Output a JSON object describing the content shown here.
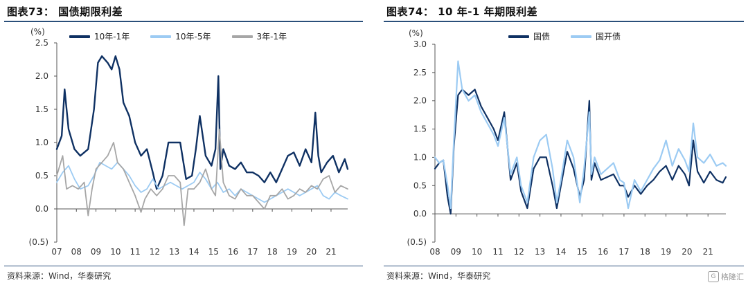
{
  "left": {
    "title": "图表73：  国债期限利差",
    "source": "资料来源：Wind，华泰研究",
    "chart_data": {
      "type": "line",
      "unit_label": "(%)",
      "ylim": [
        -0.5,
        2.5
      ],
      "yticks": [
        -0.5,
        0.0,
        0.5,
        1.0,
        1.5,
        2.0,
        2.5
      ],
      "ytick_labels": [
        "(0.5)",
        "0.0",
        "0.5",
        "1.0",
        "1.5",
        "2.0",
        "2.5"
      ],
      "xlim": [
        2007.0,
        2021.85
      ],
      "xticks": [
        2007,
        2008,
        2009,
        2010,
        2011,
        2012,
        2013,
        2014,
        2015,
        2016,
        2017,
        2018,
        2019,
        2020,
        2021
      ],
      "xtick_labels": [
        "07",
        "08",
        "09",
        "10",
        "11",
        "12",
        "13",
        "14",
        "15",
        "16",
        "17",
        "18",
        "19",
        "20",
        "21"
      ],
      "legend_position": "top",
      "series": [
        {
          "name": "10年-1年",
          "color": "#0f3163",
          "width": 2.4,
          "x": [
            2007.0,
            2007.25,
            2007.4,
            2007.6,
            2007.9,
            2008.2,
            2008.6,
            2008.9,
            2009.1,
            2009.3,
            2009.6,
            2009.8,
            2010.0,
            2010.2,
            2010.4,
            2010.7,
            2011.0,
            2011.3,
            2011.6,
            2011.9,
            2012.1,
            2012.4,
            2012.7,
            2013.0,
            2013.3,
            2013.6,
            2013.9,
            2014.1,
            2014.3,
            2014.6,
            2014.9,
            2015.1,
            2015.25,
            2015.35,
            2015.5,
            2015.8,
            2016.1,
            2016.4,
            2016.7,
            2017.0,
            2017.3,
            2017.6,
            2017.9,
            2018.2,
            2018.5,
            2018.8,
            2019.1,
            2019.4,
            2019.7,
            2020.0,
            2020.2,
            2020.35,
            2020.5,
            2020.8,
            2021.1,
            2021.4,
            2021.7,
            2021.85
          ],
          "y": [
            0.9,
            1.1,
            1.8,
            1.2,
            0.9,
            0.8,
            0.9,
            1.5,
            2.2,
            2.3,
            2.2,
            2.1,
            2.3,
            2.1,
            1.6,
            1.4,
            1.0,
            0.8,
            0.9,
            0.55,
            0.3,
            0.5,
            1.0,
            1.0,
            1.0,
            0.45,
            0.5,
            0.9,
            1.4,
            0.8,
            0.65,
            0.9,
            2.0,
            0.6,
            0.9,
            0.65,
            0.6,
            0.7,
            0.55,
            0.55,
            0.5,
            0.4,
            0.55,
            0.4,
            0.6,
            0.8,
            0.85,
            0.65,
            0.9,
            0.7,
            1.45,
            0.8,
            0.55,
            0.7,
            0.8,
            0.55,
            0.75,
            0.6
          ]
        },
        {
          "name": "10年-5年",
          "color": "#9ccbf3",
          "width": 1.8,
          "x": [
            2007.0,
            2007.3,
            2007.6,
            2007.9,
            2008.2,
            2008.6,
            2008.9,
            2009.2,
            2009.5,
            2009.8,
            2010.1,
            2010.4,
            2010.7,
            2011.0,
            2011.3,
            2011.6,
            2011.9,
            2012.2,
            2012.5,
            2012.8,
            2013.1,
            2013.4,
            2013.7,
            2014.0,
            2014.3,
            2014.6,
            2014.9,
            2015.2,
            2015.5,
            2015.8,
            2016.1,
            2016.4,
            2016.7,
            2017.0,
            2017.3,
            2017.6,
            2017.9,
            2018.2,
            2018.5,
            2018.8,
            2019.1,
            2019.4,
            2019.7,
            2020.0,
            2020.3,
            2020.6,
            2020.9,
            2021.2,
            2021.5,
            2021.85
          ],
          "y": [
            0.4,
            0.55,
            0.65,
            0.45,
            0.3,
            0.35,
            0.5,
            0.7,
            0.65,
            0.6,
            0.7,
            0.6,
            0.5,
            0.35,
            0.25,
            0.3,
            0.45,
            0.3,
            0.35,
            0.4,
            0.35,
            0.3,
            0.35,
            0.4,
            0.55,
            0.45,
            0.3,
            0.4,
            0.25,
            0.3,
            0.2,
            0.3,
            0.25,
            0.2,
            0.15,
            0.1,
            0.15,
            0.2,
            0.25,
            0.3,
            0.25,
            0.2,
            0.25,
            0.3,
            0.35,
            0.2,
            0.15,
            0.25,
            0.2,
            0.15
          ]
        },
        {
          "name": "3年-1年",
          "color": "#a6a6a6",
          "width": 1.8,
          "x": [
            2007.0,
            2007.3,
            2007.5,
            2007.8,
            2008.1,
            2008.4,
            2008.6,
            2008.8,
            2009.0,
            2009.3,
            2009.6,
            2009.9,
            2010.1,
            2010.4,
            2010.7,
            2011.0,
            2011.3,
            2011.5,
            2011.8,
            2012.1,
            2012.4,
            2012.7,
            2013.0,
            2013.3,
            2013.5,
            2013.7,
            2014.0,
            2014.3,
            2014.6,
            2014.9,
            2015.1,
            2015.3,
            2015.5,
            2015.8,
            2016.1,
            2016.4,
            2016.7,
            2017.0,
            2017.3,
            2017.6,
            2017.9,
            2018.2,
            2018.5,
            2018.8,
            2019.1,
            2019.4,
            2019.7,
            2020.0,
            2020.3,
            2020.6,
            2020.9,
            2021.2,
            2021.5,
            2021.85
          ],
          "y": [
            0.5,
            0.8,
            0.3,
            0.35,
            0.3,
            0.4,
            -0.1,
            0.3,
            0.6,
            0.7,
            0.8,
            1.0,
            0.7,
            0.6,
            0.4,
            0.2,
            -0.05,
            0.15,
            0.3,
            0.2,
            0.3,
            0.5,
            0.5,
            0.4,
            -0.25,
            0.3,
            0.3,
            0.4,
            0.6,
            0.3,
            0.2,
            1.2,
            0.4,
            0.2,
            0.15,
            0.3,
            0.2,
            0.2,
            0.1,
            0.0,
            0.2,
            0.2,
            0.3,
            0.15,
            0.2,
            0.3,
            0.25,
            0.35,
            0.3,
            0.45,
            0.5,
            0.25,
            0.35,
            0.3
          ]
        }
      ]
    }
  },
  "right": {
    "title": "图表74：  10 年-1 年期限利差",
    "source": "资料来源：Wind，华泰研究",
    "watermark": "格隆汇",
    "watermark_icon": "G",
    "chart_data": {
      "type": "line",
      "unit_label": "(%)",
      "ylim": [
        -0.5,
        3.0
      ],
      "yticks": [
        -0.5,
        0.0,
        0.5,
        1.0,
        1.5,
        2.0,
        2.5,
        3.0
      ],
      "ytick_labels": [
        "(0.5)",
        "0.0",
        "0.5",
        "1.0",
        "1.5",
        "2.0",
        "2.5",
        "3.0"
      ],
      "xlim": [
        2008.0,
        2021.85
      ],
      "xticks": [
        2008,
        2009,
        2010,
        2011,
        2012,
        2013,
        2014,
        2015,
        2016,
        2017,
        2018,
        2019,
        2020,
        2021
      ],
      "xtick_labels": [
        "08",
        "09",
        "10",
        "11",
        "12",
        "13",
        "14",
        "15",
        "16",
        "17",
        "18",
        "19",
        "20",
        "21"
      ],
      "legend_position": "top",
      "series": [
        {
          "name": "国债",
          "color": "#0f3163",
          "width": 2.2,
          "x": [
            2008.0,
            2008.2,
            2008.4,
            2008.6,
            2008.75,
            2008.9,
            2009.1,
            2009.3,
            2009.6,
            2009.9,
            2010.2,
            2010.5,
            2010.8,
            2011.0,
            2011.3,
            2011.6,
            2011.9,
            2012.1,
            2012.4,
            2012.7,
            2013.0,
            2013.3,
            2013.6,
            2013.8,
            2014.0,
            2014.3,
            2014.6,
            2014.9,
            2015.1,
            2015.35,
            2015.45,
            2015.6,
            2015.9,
            2016.2,
            2016.5,
            2016.8,
            2017.0,
            2017.2,
            2017.5,
            2017.8,
            2018.1,
            2018.4,
            2018.7,
            2019.0,
            2019.3,
            2019.6,
            2019.9,
            2020.1,
            2020.3,
            2020.5,
            2020.8,
            2021.1,
            2021.4,
            2021.7,
            2021.85
          ],
          "y": [
            0.8,
            0.9,
            0.95,
            0.3,
            0.0,
            1.2,
            2.1,
            2.2,
            2.1,
            2.2,
            1.9,
            1.7,
            1.5,
            1.3,
            1.8,
            0.6,
            0.9,
            0.4,
            0.1,
            0.8,
            1.0,
            1.0,
            0.5,
            0.1,
            0.5,
            1.1,
            0.8,
            0.3,
            0.6,
            2.0,
            0.6,
            0.9,
            0.6,
            0.65,
            0.7,
            0.5,
            0.5,
            0.3,
            0.5,
            0.35,
            0.5,
            0.6,
            0.75,
            0.85,
            0.6,
            0.85,
            0.7,
            0.5,
            1.3,
            0.75,
            0.55,
            0.75,
            0.6,
            0.55,
            0.65
          ]
        },
        {
          "name": "国开债",
          "color": "#9ccbf3",
          "width": 2.2,
          "x": [
            2008.0,
            2008.2,
            2008.4,
            2008.6,
            2008.75,
            2008.9,
            2009.1,
            2009.3,
            2009.6,
            2009.9,
            2010.2,
            2010.5,
            2010.8,
            2011.0,
            2011.3,
            2011.6,
            2011.9,
            2012.1,
            2012.4,
            2012.7,
            2013.0,
            2013.3,
            2013.6,
            2013.8,
            2014.0,
            2014.3,
            2014.6,
            2014.9,
            2015.1,
            2015.35,
            2015.45,
            2015.6,
            2015.9,
            2016.2,
            2016.5,
            2016.8,
            2017.0,
            2017.2,
            2017.5,
            2017.8,
            2018.1,
            2018.4,
            2018.7,
            2019.0,
            2019.3,
            2019.6,
            2019.9,
            2020.1,
            2020.3,
            2020.5,
            2020.8,
            2021.1,
            2021.4,
            2021.7,
            2021.85
          ],
          "y": [
            1.0,
            0.9,
            0.95,
            0.5,
            0.1,
            1.3,
            2.7,
            2.2,
            2.0,
            2.1,
            1.8,
            1.6,
            1.4,
            1.2,
            1.7,
            0.7,
            1.0,
            0.5,
            0.2,
            1.0,
            1.3,
            1.4,
            0.8,
            0.2,
            0.6,
            1.3,
            1.0,
            0.2,
            0.8,
            1.8,
            0.7,
            1.0,
            0.7,
            0.8,
            0.9,
            0.6,
            0.55,
            0.1,
            0.6,
            0.4,
            0.6,
            0.8,
            0.95,
            1.3,
            0.85,
            1.15,
            0.95,
            0.75,
            1.6,
            1.0,
            0.9,
            1.05,
            0.85,
            0.9,
            0.85
          ]
        }
      ]
    }
  }
}
